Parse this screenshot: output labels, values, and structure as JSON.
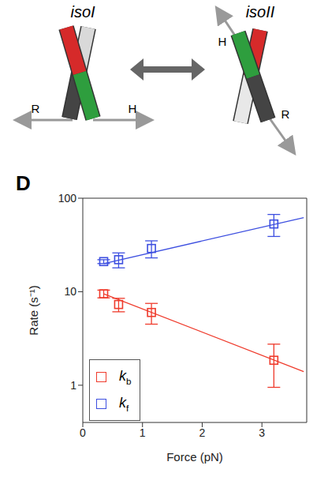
{
  "diagram": {
    "left": {
      "title": "isoI",
      "arrow_labels": [
        "R",
        "H"
      ]
    },
    "right": {
      "title": "isoII",
      "arrow_labels": [
        "H",
        "R"
      ]
    }
  },
  "chart_data": {
    "type": "scatter",
    "panel_label": "D",
    "x_label": "Force (pN)",
    "y_label": "Rate (s⁻¹)",
    "log": "y",
    "xlim": [
      0,
      3.75
    ],
    "xticks": [
      0,
      1,
      2,
      3
    ],
    "ylim": [
      0.4,
      100
    ],
    "yticks": [
      1,
      10,
      100
    ],
    "legend": "lower left",
    "marker": "square",
    "series": [
      {
        "name": "kb",
        "color": "#ef3b2c",
        "x": [
          0.35,
          0.6,
          1.15,
          3.2
        ],
        "values": [
          9.5,
          7.3,
          6.0,
          1.85
        ],
        "errors": [
          0.9,
          1.2,
          1.5,
          0.9
        ],
        "fit": {
          "x": [
            0.35,
            3.7
          ],
          "values": [
            9.5,
            1.4
          ]
        }
      },
      {
        "name": "kf",
        "color": "#3d4fe0",
        "x": [
          0.35,
          0.6,
          1.15,
          3.2
        ],
        "values": [
          21,
          22,
          29,
          53
        ],
        "errors": [
          1,
          4,
          6,
          14
        ],
        "fit": {
          "x": [
            0.35,
            3.7
          ],
          "values": [
            20,
            62
          ]
        }
      }
    ]
  }
}
